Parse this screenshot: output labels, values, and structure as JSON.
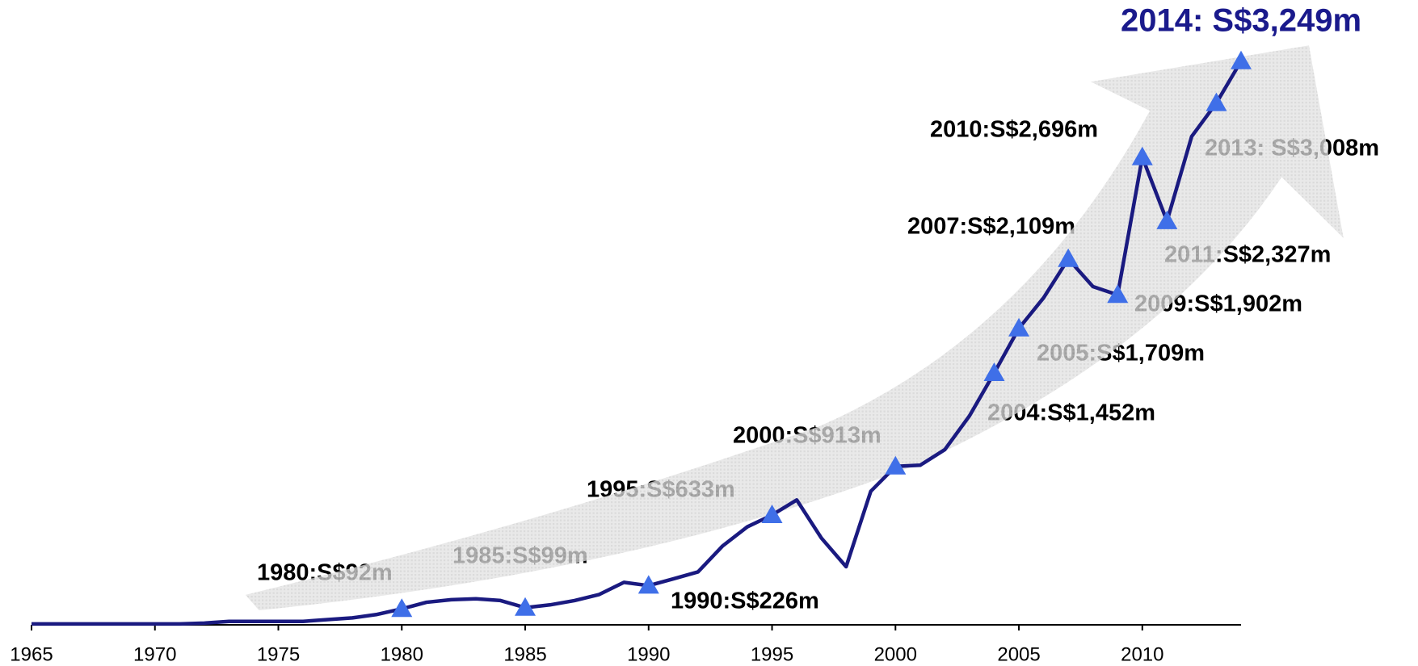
{
  "chart_data": {
    "type": "line",
    "x": [
      1965,
      1966,
      1967,
      1968,
      1969,
      1970,
      1971,
      1972,
      1973,
      1974,
      1975,
      1976,
      1977,
      1978,
      1979,
      1980,
      1981,
      1982,
      1983,
      1984,
      1985,
      1986,
      1987,
      1988,
      1989,
      1990,
      1991,
      1992,
      1993,
      1994,
      1995,
      1996,
      1997,
      1998,
      1999,
      2000,
      2001,
      2002,
      2003,
      2004,
      2005,
      2006,
      2007,
      2008,
      2009,
      2010,
      2011,
      2012,
      2013,
      2014
    ],
    "series": [
      {
        "color": "#1a1a80",
        "values": [
          5,
          5,
          5,
          5,
          5,
          5,
          5,
          10,
          20,
          20,
          20,
          20,
          30,
          40,
          60,
          92,
          130,
          145,
          150,
          140,
          99,
          115,
          140,
          175,
          245,
          226,
          265,
          305,
          455,
          565,
          633,
          720,
          500,
          335,
          770,
          913,
          920,
          1010,
          1205,
          1452,
          1709,
          1885,
          2109,
          1950,
          1902,
          2696,
          2327,
          2815,
          3008,
          3249
        ]
      }
    ],
    "marker_color": "#3f6fe8",
    "xlim": [
      1965,
      2014
    ],
    "xticks": [
      1965,
      1970,
      1975,
      1980,
      1985,
      1990,
      1995,
      2000,
      2005,
      2010
    ],
    "annotations": [
      {
        "x": 1980,
        "label": "1980:S$92m"
      },
      {
        "x": 1985,
        "label": "1985:S$99m"
      },
      {
        "x": 1990,
        "label": "1990:S$226m"
      },
      {
        "x": 1995,
        "label": "1995:S$633m"
      },
      {
        "x": 2000,
        "label": "2000:S$913m"
      },
      {
        "x": 2004,
        "label": "2004:S$1,452m"
      },
      {
        "x": 2005,
        "label": "2005:S$1,709m"
      },
      {
        "x": 2007,
        "label": "2007:S$2,109m"
      },
      {
        "x": 2009,
        "label": "2009:S$1,902m"
      },
      {
        "x": 2010,
        "label": "2010:S$2,696m"
      },
      {
        "x": 2011,
        "label": "2011:S$2,327m"
      },
      {
        "x": 2013,
        "label": "2013: S$3,008m"
      },
      {
        "x": 2014,
        "label": "2014: S$3,249m"
      }
    ]
  }
}
